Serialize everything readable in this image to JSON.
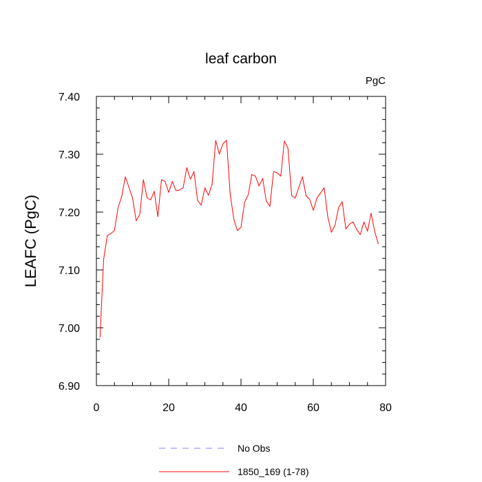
{
  "chart_data": {
    "type": "line",
    "title": "leaf carbon",
    "units": "PgC",
    "xlabel": "",
    "ylabel": "LEAFC  (PgC)",
    "xlim": [
      0,
      80
    ],
    "ylim": [
      6.9,
      7.4
    ],
    "x_ticks": [
      "0",
      "20",
      "40",
      "60",
      "80"
    ],
    "y_ticks": [
      "6.90",
      "7.00",
      "7.10",
      "7.20",
      "7.30",
      "7.40"
    ],
    "grid": false,
    "legend_position": "bottom",
    "legend": [
      {
        "label": "No Obs",
        "color": "#8080ff",
        "style": "dashed"
      },
      {
        "label": "1850_169 (1-78)",
        "color": "#ff0000",
        "style": "solid"
      }
    ],
    "series": [
      {
        "name": "1850_169 (1-78)",
        "color": "#ff0000",
        "x": [
          1,
          2,
          3,
          4,
          5,
          6,
          7,
          8,
          9,
          10,
          11,
          12,
          13,
          14,
          15,
          16,
          17,
          18,
          19,
          20,
          21,
          22,
          23,
          24,
          25,
          26,
          27,
          28,
          29,
          30,
          31,
          32,
          33,
          34,
          35,
          36,
          37,
          38,
          39,
          40,
          41,
          42,
          43,
          44,
          45,
          46,
          47,
          48,
          49,
          50,
          51,
          52,
          53,
          54,
          55,
          56,
          57,
          58,
          59,
          60,
          61,
          62,
          63,
          64,
          65,
          66,
          67,
          68,
          69,
          70,
          71,
          72,
          73,
          74,
          75,
          76,
          77,
          78
        ],
        "y": [
          6.983,
          7.118,
          7.159,
          7.163,
          7.168,
          7.208,
          7.227,
          7.261,
          7.243,
          7.224,
          7.185,
          7.196,
          7.256,
          7.225,
          7.221,
          7.236,
          7.192,
          7.256,
          7.253,
          7.234,
          7.253,
          7.237,
          7.238,
          7.242,
          7.277,
          7.257,
          7.27,
          7.22,
          7.212,
          7.242,
          7.229,
          7.248,
          7.324,
          7.3,
          7.318,
          7.324,
          7.232,
          7.188,
          7.168,
          7.174,
          7.217,
          7.23,
          7.265,
          7.262,
          7.245,
          7.258,
          7.219,
          7.21,
          7.27,
          7.268,
          7.262,
          7.323,
          7.31,
          7.229,
          7.224,
          7.243,
          7.261,
          7.228,
          7.222,
          7.203,
          7.224,
          7.233,
          7.242,
          7.192,
          7.165,
          7.177,
          7.208,
          7.218,
          7.171,
          7.179,
          7.183,
          7.17,
          7.161,
          7.183,
          7.167,
          7.198,
          7.166,
          7.145
        ]
      }
    ]
  }
}
